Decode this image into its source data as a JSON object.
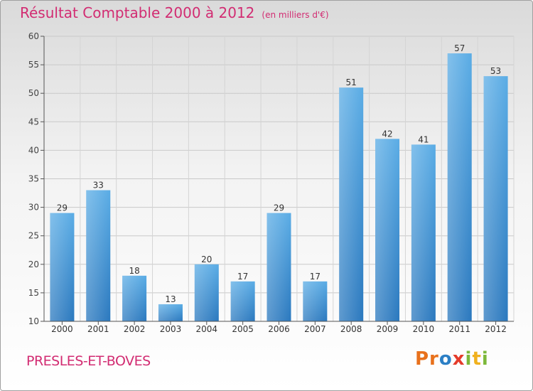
{
  "chart_data": {
    "type": "bar",
    "title": "Résultat Comptable 2000 à 2012",
    "subtitle": "(en milliers d'€)",
    "categories": [
      "2000",
      "2001",
      "2002",
      "2003",
      "2004",
      "2005",
      "2006",
      "2007",
      "2008",
      "2009",
      "2010",
      "2011",
      "2012"
    ],
    "values": [
      29,
      33,
      18,
      13,
      20,
      17,
      29,
      17,
      51,
      42,
      41,
      57,
      53
    ],
    "ylim": [
      10,
      60
    ],
    "yticks": [
      10,
      15,
      20,
      25,
      30,
      35,
      40,
      45,
      50,
      55,
      60
    ],
    "grid": true,
    "bar_color": "#3d8fd3",
    "xlabel": "",
    "ylabel": ""
  },
  "footer": {
    "commune": "PRESLES-ET-BOVES",
    "logo": [
      "Pr",
      "o",
      "x",
      "i",
      "t",
      "i"
    ]
  },
  "colors": {
    "accent": "#d22c72"
  }
}
